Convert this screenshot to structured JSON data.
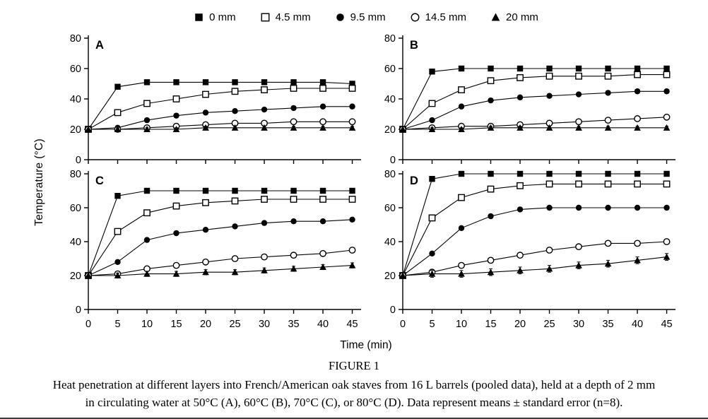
{
  "colors": {
    "foreground": "#000000",
    "background": "#ffffff"
  },
  "legend": {
    "position": "top",
    "items": [
      {
        "label": "0 mm",
        "marker": "filled-square"
      },
      {
        "label": "4.5 mm",
        "marker": "open-square"
      },
      {
        "label": "9.5 mm",
        "marker": "filled-circle"
      },
      {
        "label": "14.5 mm",
        "marker": "open-circle"
      },
      {
        "label": "20 mm",
        "marker": "filled-triangle"
      }
    ]
  },
  "axes": {
    "xlabel": "Time (min)",
    "ylabel": "Temperature (°C)",
    "xticks": [
      0,
      5,
      10,
      15,
      20,
      25,
      30,
      35,
      40,
      45
    ],
    "yticks": [
      0,
      20,
      40,
      60,
      80
    ],
    "xlim": [
      0,
      46.5
    ],
    "ylim": [
      0,
      80
    ],
    "grid": false
  },
  "caption": {
    "title": "FIGURE 1",
    "line1": "Heat penetration at different layers into French/American oak staves from 16 L barrels (pooled data), held at a depth of 2 mm",
    "line2": "in circulating water at 50°C (A), 60°C (B), 70°C (C), or 80°C (D). Data represent means ± standard error (n=8)."
  },
  "chart_data": [
    {
      "type": "line",
      "panel": "A",
      "water_temp": "50°C",
      "grid": false,
      "show_x_tick_labels": false,
      "x": [
        0,
        5,
        10,
        15,
        20,
        25,
        30,
        35,
        40,
        45
      ],
      "series": [
        {
          "name": "0 mm",
          "marker": "filled-square",
          "stderr": 1,
          "values": [
            20,
            48,
            51,
            51,
            51,
            51,
            51,
            51,
            51,
            50
          ]
        },
        {
          "name": "4.5 mm",
          "marker": "open-square",
          "stderr": 1,
          "values": [
            20,
            31,
            37,
            40,
            43,
            45,
            46,
            47,
            47,
            47
          ]
        },
        {
          "name": "9.5 mm",
          "marker": "filled-circle",
          "stderr": 1,
          "values": [
            20,
            21,
            26,
            29,
            31,
            32,
            33,
            34,
            35,
            35
          ]
        },
        {
          "name": "14.5 mm",
          "marker": "open-circle",
          "stderr": 1,
          "values": [
            20,
            20,
            21,
            22,
            23,
            24,
            24,
            25,
            25,
            25
          ]
        },
        {
          "name": "20 mm",
          "marker": "filled-triangle",
          "stderr": 1,
          "values": [
            20,
            20,
            20,
            20,
            21,
            21,
            21,
            21,
            21,
            21
          ]
        }
      ]
    },
    {
      "type": "line",
      "panel": "B",
      "water_temp": "60°C",
      "grid": false,
      "show_x_tick_labels": false,
      "x": [
        0,
        5,
        10,
        15,
        20,
        25,
        30,
        35,
        40,
        45
      ],
      "series": [
        {
          "name": "0 mm",
          "marker": "filled-square",
          "stderr": 1,
          "values": [
            20,
            58,
            60,
            60,
            60,
            60,
            60,
            60,
            60,
            60
          ]
        },
        {
          "name": "4.5 mm",
          "marker": "open-square",
          "stderr": 1,
          "values": [
            20,
            37,
            46,
            52,
            54,
            55,
            55,
            55,
            56,
            56
          ]
        },
        {
          "name": "9.5 mm",
          "marker": "filled-circle",
          "stderr": 1,
          "values": [
            20,
            26,
            35,
            39,
            41,
            42,
            43,
            44,
            45,
            45
          ]
        },
        {
          "name": "14.5 mm",
          "marker": "open-circle",
          "stderr": 1,
          "values": [
            20,
            21,
            22,
            22,
            23,
            24,
            25,
            26,
            27,
            28
          ]
        },
        {
          "name": "20 mm",
          "marker": "filled-triangle",
          "stderr": 1,
          "values": [
            20,
            20,
            20,
            21,
            21,
            21,
            21,
            21,
            21,
            21
          ]
        }
      ]
    },
    {
      "type": "line",
      "panel": "C",
      "water_temp": "70°C",
      "grid": false,
      "show_x_tick_labels": true,
      "x": [
        0,
        5,
        10,
        15,
        20,
        25,
        30,
        35,
        40,
        45
      ],
      "series": [
        {
          "name": "0 mm",
          "marker": "filled-square",
          "stderr": 1,
          "values": [
            20,
            67,
            70,
            70,
            70,
            70,
            70,
            70,
            70,
            70
          ]
        },
        {
          "name": "4.5 mm",
          "marker": "open-square",
          "stderr": 1,
          "values": [
            20,
            46,
            57,
            61,
            63,
            64,
            65,
            65,
            65,
            65
          ]
        },
        {
          "name": "9.5 mm",
          "marker": "filled-circle",
          "stderr": 1,
          "values": [
            20,
            28,
            41,
            45,
            47,
            49,
            51,
            52,
            52,
            53
          ]
        },
        {
          "name": "14.5 mm",
          "marker": "open-circle",
          "stderr": 1.5,
          "values": [
            20,
            21,
            24,
            26,
            28,
            30,
            31,
            32,
            33,
            35
          ]
        },
        {
          "name": "20 mm",
          "marker": "filled-triangle",
          "stderr": 1.5,
          "values": [
            20,
            20,
            21,
            21,
            22,
            22,
            23,
            24,
            25,
            26
          ]
        }
      ]
    },
    {
      "type": "line",
      "panel": "D",
      "water_temp": "80°C",
      "grid": false,
      "show_x_tick_labels": true,
      "x": [
        0,
        5,
        10,
        15,
        20,
        25,
        30,
        35,
        40,
        45
      ],
      "series": [
        {
          "name": "0 mm",
          "marker": "filled-square",
          "stderr": 1,
          "values": [
            20,
            77,
            80,
            80,
            80,
            80,
            80,
            80,
            80,
            80
          ]
        },
        {
          "name": "4.5 mm",
          "marker": "open-square",
          "stderr": 1,
          "values": [
            20,
            54,
            66,
            71,
            73,
            74,
            74,
            74,
            74,
            74
          ]
        },
        {
          "name": "9.5 mm",
          "marker": "filled-circle",
          "stderr": 1,
          "values": [
            20,
            33,
            48,
            55,
            59,
            60,
            60,
            60,
            60,
            60
          ]
        },
        {
          "name": "14.5 mm",
          "marker": "open-circle",
          "stderr": 1.5,
          "values": [
            20,
            22,
            26,
            29,
            32,
            35,
            37,
            39,
            39,
            40
          ]
        },
        {
          "name": "20 mm",
          "marker": "filled-triangle",
          "stderr": 2,
          "values": [
            20,
            21,
            21,
            22,
            23,
            24,
            26,
            27,
            29,
            31
          ]
        }
      ]
    }
  ]
}
